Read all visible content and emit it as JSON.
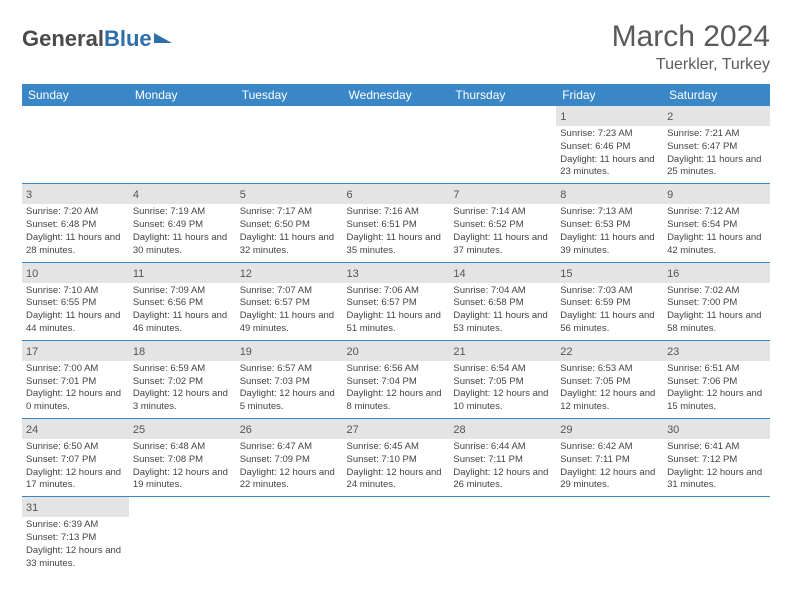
{
  "logo": {
    "word1": "General",
    "word2": "Blue"
  },
  "title": "March 2024",
  "location": "Tuerkler, Turkey",
  "colors": {
    "header_bg": "#3a87c8",
    "header_text": "#ffffff",
    "daynum_bg": "#e4e4e4",
    "border": "#3a87c8",
    "text": "#444444",
    "title_text": "#5a5a5a"
  },
  "weekdays": [
    "Sunday",
    "Monday",
    "Tuesday",
    "Wednesday",
    "Thursday",
    "Friday",
    "Saturday"
  ],
  "weeks": [
    [
      null,
      null,
      null,
      null,
      null,
      {
        "n": "1",
        "sr": "7:23 AM",
        "ss": "6:46 PM",
        "dl": "11 hours and 23 minutes."
      },
      {
        "n": "2",
        "sr": "7:21 AM",
        "ss": "6:47 PM",
        "dl": "11 hours and 25 minutes."
      }
    ],
    [
      {
        "n": "3",
        "sr": "7:20 AM",
        "ss": "6:48 PM",
        "dl": "11 hours and 28 minutes."
      },
      {
        "n": "4",
        "sr": "7:19 AM",
        "ss": "6:49 PM",
        "dl": "11 hours and 30 minutes."
      },
      {
        "n": "5",
        "sr": "7:17 AM",
        "ss": "6:50 PM",
        "dl": "11 hours and 32 minutes."
      },
      {
        "n": "6",
        "sr": "7:16 AM",
        "ss": "6:51 PM",
        "dl": "11 hours and 35 minutes."
      },
      {
        "n": "7",
        "sr": "7:14 AM",
        "ss": "6:52 PM",
        "dl": "11 hours and 37 minutes."
      },
      {
        "n": "8",
        "sr": "7:13 AM",
        "ss": "6:53 PM",
        "dl": "11 hours and 39 minutes."
      },
      {
        "n": "9",
        "sr": "7:12 AM",
        "ss": "6:54 PM",
        "dl": "11 hours and 42 minutes."
      }
    ],
    [
      {
        "n": "10",
        "sr": "7:10 AM",
        "ss": "6:55 PM",
        "dl": "11 hours and 44 minutes."
      },
      {
        "n": "11",
        "sr": "7:09 AM",
        "ss": "6:56 PM",
        "dl": "11 hours and 46 minutes."
      },
      {
        "n": "12",
        "sr": "7:07 AM",
        "ss": "6:57 PM",
        "dl": "11 hours and 49 minutes."
      },
      {
        "n": "13",
        "sr": "7:06 AM",
        "ss": "6:57 PM",
        "dl": "11 hours and 51 minutes."
      },
      {
        "n": "14",
        "sr": "7:04 AM",
        "ss": "6:58 PM",
        "dl": "11 hours and 53 minutes."
      },
      {
        "n": "15",
        "sr": "7:03 AM",
        "ss": "6:59 PM",
        "dl": "11 hours and 56 minutes."
      },
      {
        "n": "16",
        "sr": "7:02 AM",
        "ss": "7:00 PM",
        "dl": "11 hours and 58 minutes."
      }
    ],
    [
      {
        "n": "17",
        "sr": "7:00 AM",
        "ss": "7:01 PM",
        "dl": "12 hours and 0 minutes."
      },
      {
        "n": "18",
        "sr": "6:59 AM",
        "ss": "7:02 PM",
        "dl": "12 hours and 3 minutes."
      },
      {
        "n": "19",
        "sr": "6:57 AM",
        "ss": "7:03 PM",
        "dl": "12 hours and 5 minutes."
      },
      {
        "n": "20",
        "sr": "6:56 AM",
        "ss": "7:04 PM",
        "dl": "12 hours and 8 minutes."
      },
      {
        "n": "21",
        "sr": "6:54 AM",
        "ss": "7:05 PM",
        "dl": "12 hours and 10 minutes."
      },
      {
        "n": "22",
        "sr": "6:53 AM",
        "ss": "7:05 PM",
        "dl": "12 hours and 12 minutes."
      },
      {
        "n": "23",
        "sr": "6:51 AM",
        "ss": "7:06 PM",
        "dl": "12 hours and 15 minutes."
      }
    ],
    [
      {
        "n": "24",
        "sr": "6:50 AM",
        "ss": "7:07 PM",
        "dl": "12 hours and 17 minutes."
      },
      {
        "n": "25",
        "sr": "6:48 AM",
        "ss": "7:08 PM",
        "dl": "12 hours and 19 minutes."
      },
      {
        "n": "26",
        "sr": "6:47 AM",
        "ss": "7:09 PM",
        "dl": "12 hours and 22 minutes."
      },
      {
        "n": "27",
        "sr": "6:45 AM",
        "ss": "7:10 PM",
        "dl": "12 hours and 24 minutes."
      },
      {
        "n": "28",
        "sr": "6:44 AM",
        "ss": "7:11 PM",
        "dl": "12 hours and 26 minutes."
      },
      {
        "n": "29",
        "sr": "6:42 AM",
        "ss": "7:11 PM",
        "dl": "12 hours and 29 minutes."
      },
      {
        "n": "30",
        "sr": "6:41 AM",
        "ss": "7:12 PM",
        "dl": "12 hours and 31 minutes."
      }
    ],
    [
      {
        "n": "31",
        "sr": "6:39 AM",
        "ss": "7:13 PM",
        "dl": "12 hours and 33 minutes."
      },
      null,
      null,
      null,
      null,
      null,
      null
    ]
  ],
  "labels": {
    "sunrise": "Sunrise: ",
    "sunset": "Sunset: ",
    "daylight": "Daylight: "
  }
}
